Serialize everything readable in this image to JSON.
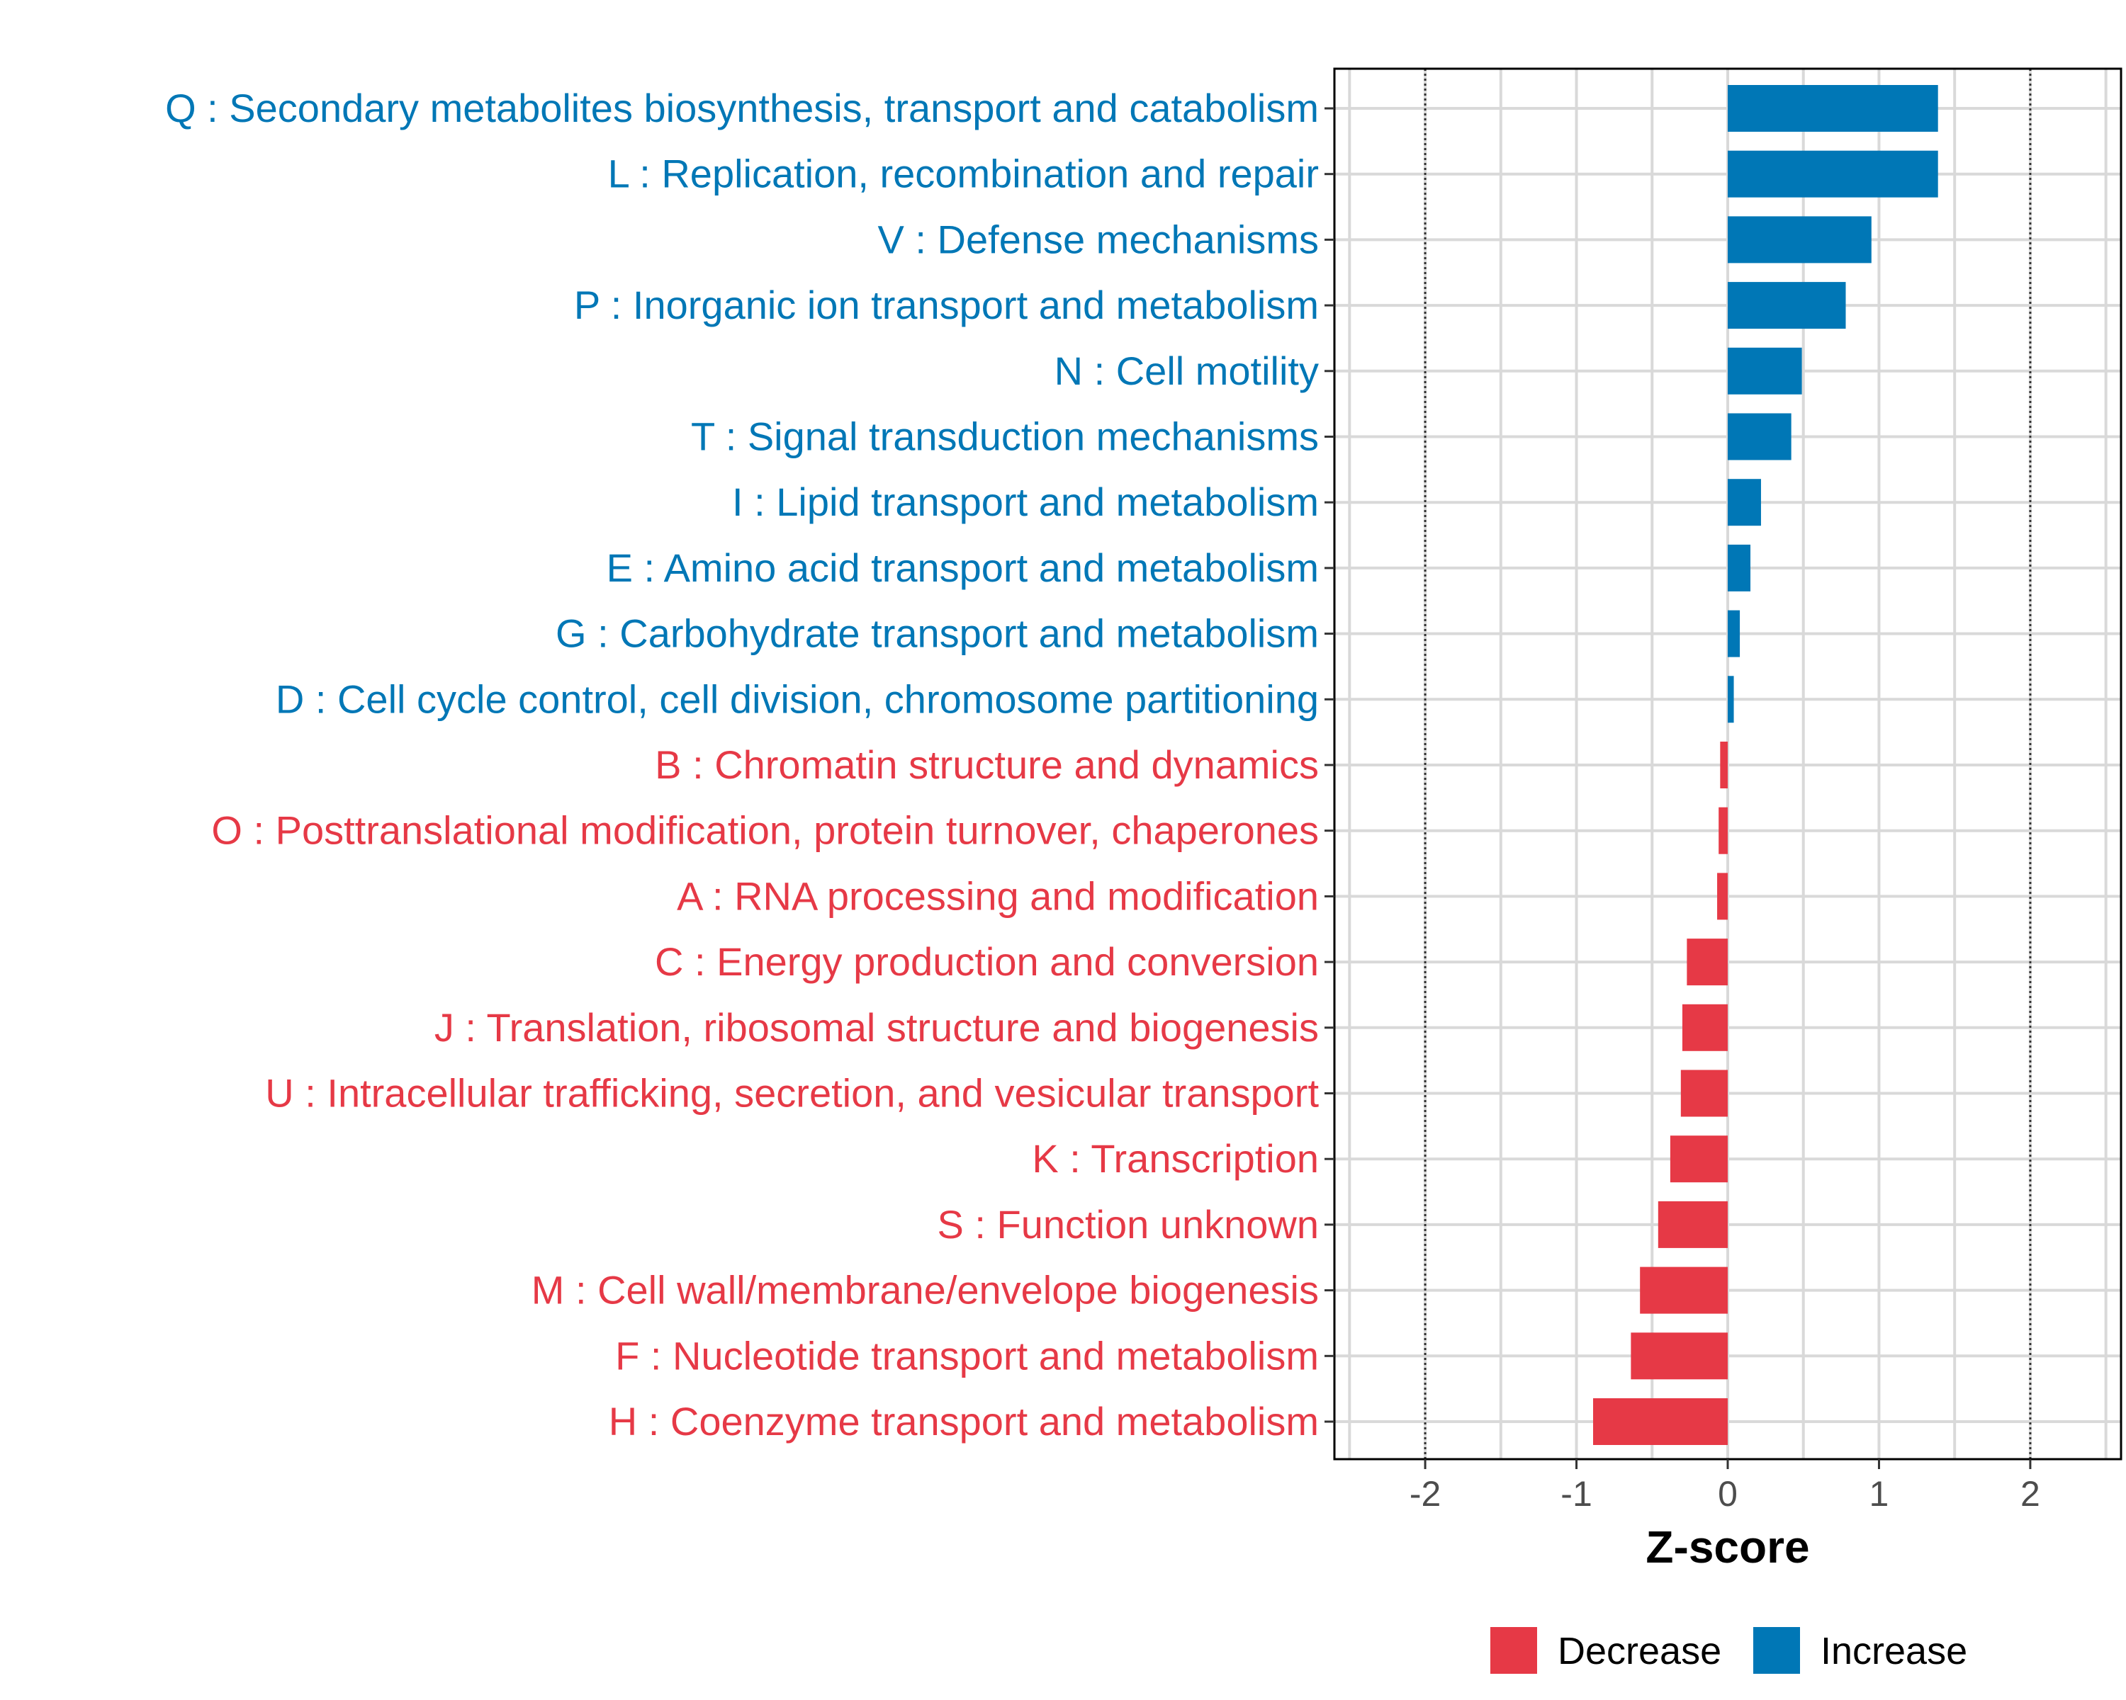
{
  "chart_data": {
    "type": "bar",
    "orientation": "horizontal",
    "title": "",
    "xlabel": "Z-score",
    "ylabel": "",
    "xlim": [
      -2.6,
      2.6
    ],
    "xticks": [
      -2,
      -1,
      0,
      1,
      2
    ],
    "xtick_labels": [
      "-2",
      "-1",
      "0",
      "1",
      "2"
    ],
    "reference_lines": [
      -2,
      2
    ],
    "grid": true,
    "legend_position": "bottom",
    "colors": {
      "Decrease": "#E63946",
      "Increase": "#0077B6"
    },
    "legend": [
      {
        "name": "Decrease",
        "color": "#E63946"
      },
      {
        "name": "Increase",
        "color": "#0077B6"
      }
    ],
    "categories": [
      "Q : Secondary metabolites biosynthesis, transport and catabolism",
      "L : Replication, recombination and repair",
      "V : Defense mechanisms",
      "P : Inorganic ion transport and metabolism",
      "N : Cell motility",
      "T : Signal transduction mechanisms",
      "I : Lipid transport and metabolism",
      "E : Amino acid transport and metabolism",
      "G : Carbohydrate transport and metabolism",
      "D : Cell cycle control, cell division, chromosome partitioning",
      "B : Chromatin structure and dynamics",
      "O : Posttranslational modification, protein turnover, chaperones",
      "A : RNA processing and modification",
      "C : Energy production and conversion",
      "J : Translation, ribosomal structure and biogenesis",
      "U : Intracellular trafficking, secretion, and vesicular transport",
      "K : Transcription",
      "S : Function unknown",
      "M : Cell wall/membrane/envelope biogenesis",
      "F : Nucleotide transport and metabolism",
      "H : Coenzyme transport and metabolism"
    ],
    "values": [
      1.39,
      1.39,
      0.95,
      0.78,
      0.49,
      0.42,
      0.22,
      0.15,
      0.08,
      0.04,
      -0.05,
      -0.06,
      -0.07,
      -0.27,
      -0.3,
      -0.31,
      -0.38,
      -0.46,
      -0.58,
      -0.64,
      -0.89
    ],
    "groups": [
      "Increase",
      "Increase",
      "Increase",
      "Increase",
      "Increase",
      "Increase",
      "Increase",
      "Increase",
      "Increase",
      "Increase",
      "Decrease",
      "Decrease",
      "Decrease",
      "Decrease",
      "Decrease",
      "Decrease",
      "Decrease",
      "Decrease",
      "Decrease",
      "Decrease",
      "Decrease"
    ]
  }
}
